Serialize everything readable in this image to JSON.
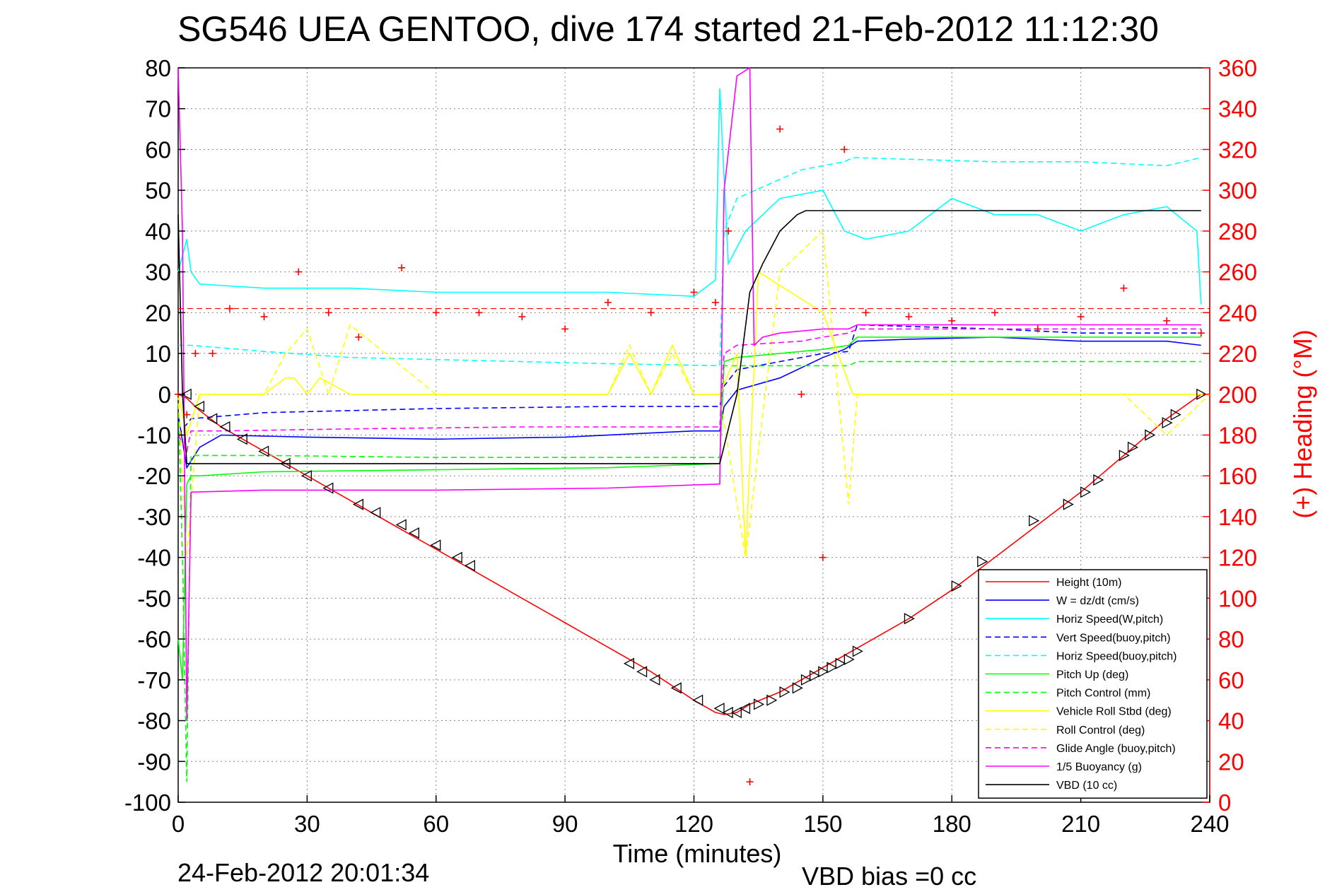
{
  "chart_data": {
    "type": "line",
    "title": "SG546 UEA GENTOO, dive 174 started 21-Feb-2012 11:12:30",
    "xlabel": "Time (minutes)",
    "ylabel": "",
    "y2label": "(+) Heading (°M)",
    "xlim": [
      0,
      240
    ],
    "ylim": [
      -100,
      80
    ],
    "y2lim": [
      0,
      360
    ],
    "xticks": [
      "0",
      "30",
      "60",
      "90",
      "120",
      "150",
      "180",
      "210",
      "240"
    ],
    "yticks": [
      "80",
      "70",
      "60",
      "50",
      "40",
      "30",
      "20",
      "10",
      "0",
      "-10",
      "-20",
      "-30",
      "-40",
      "-50",
      "-60",
      "-70",
      "-80",
      "-90",
      "-100"
    ],
    "y2ticks": [
      "360",
      "340",
      "320",
      "300",
      "280",
      "260",
      "240",
      "220",
      "200",
      "180",
      "160",
      "140",
      "120",
      "100",
      "80",
      "60",
      "40",
      "20",
      "0"
    ],
    "grid": true,
    "legend_position": "bottom-right",
    "footer_left": "24-Feb-2012 20:01:34",
    "footer_right": "VBD bias =0 cc",
    "colors": {
      "red": "#ff0000",
      "blue": "#0000ff",
      "cyan": "#00ffff",
      "green": "#00ff00",
      "yellow": "#ffff00",
      "magenta": "#ff00ff",
      "black": "#000000"
    },
    "series": [
      {
        "name": "Height (10m)",
        "color": "#ff0000",
        "style": "solid",
        "x": [
          0,
          2,
          5,
          10,
          20,
          30,
          40,
          50,
          60,
          70,
          80,
          90,
          100,
          110,
          120,
          125,
          127,
          130,
          133,
          140,
          150,
          160,
          170,
          180,
          190,
          200,
          210,
          220,
          230,
          238
        ],
        "y": [
          0,
          -1,
          -4,
          -8,
          -14,
          -20,
          -26,
          -32,
          -38,
          -44,
          -50,
          -56,
          -62,
          -68,
          -75,
          -78,
          -78.5,
          -78,
          -76,
          -73,
          -67,
          -61,
          -55,
          -48,
          -40,
          -32,
          -24,
          -15,
          -6,
          0
        ]
      },
      {
        "name": "W = dz/dt (cm/s)",
        "color": "#0000ff",
        "style": "solid",
        "x": [
          0,
          2,
          5,
          10,
          30,
          60,
          90,
          120,
          126,
          127,
          130,
          140,
          150,
          155,
          158,
          170,
          190,
          210,
          230,
          238
        ],
        "y": [
          -5,
          -18,
          -13,
          -10,
          -10.5,
          -11,
          -10.5,
          -9,
          -9,
          -3,
          1,
          4,
          9,
          11,
          13,
          13.5,
          14,
          13,
          13,
          12
        ]
      },
      {
        "name": "Horiz Speed(W,pitch)",
        "color": "#00ffff",
        "style": "solid",
        "x": [
          0,
          2,
          3,
          5,
          20,
          40,
          60,
          80,
          100,
          120,
          125,
          126,
          128,
          132,
          140,
          150,
          155,
          160,
          170,
          180,
          190,
          200,
          210,
          220,
          230,
          237,
          238
        ],
        "y": [
          30,
          38,
          30,
          27,
          26,
          26,
          25,
          25,
          25,
          24,
          28,
          75,
          32,
          40,
          48,
          50,
          40,
          38,
          40,
          48,
          44,
          44,
          40,
          44,
          46,
          40,
          22
        ]
      },
      {
        "name": "Vert Speed(buoy,pitch)",
        "color": "#0000ff",
        "style": "dashed",
        "x": [
          0,
          3,
          20,
          60,
          100,
          126,
          127,
          130,
          145,
          150,
          156,
          158,
          190,
          210,
          238
        ],
        "y": [
          -10,
          -6,
          -4.5,
          -3.5,
          -3,
          -3,
          2,
          6,
          9,
          10,
          10.5,
          17,
          16,
          15,
          15
        ]
      },
      {
        "name": "Horiz Speed(buoy,pitch)",
        "color": "#00ffff",
        "style": "dashed",
        "x": [
          0,
          3,
          20,
          40,
          60,
          100,
          126,
          127,
          130,
          145,
          155,
          157,
          190,
          210,
          230,
          238
        ],
        "y": [
          12,
          12,
          10.5,
          9,
          8.5,
          7.5,
          7,
          40,
          48,
          55,
          57,
          58,
          57,
          57,
          56,
          58
        ]
      },
      {
        "name": "Pitch Up (deg)",
        "color": "#00ff00",
        "style": "solid",
        "x": [
          0,
          1,
          2,
          3,
          5,
          20,
          60,
          100,
          126,
          127,
          130,
          140,
          150,
          156,
          158,
          180,
          210,
          238
        ],
        "y": [
          -60,
          -70,
          -22,
          -20,
          -20,
          -19,
          -18.5,
          -18,
          -17,
          8,
          9,
          10,
          11,
          12,
          14,
          14,
          14,
          14
        ]
      },
      {
        "name": "Pitch Control (mm)",
        "color": "#00ff00",
        "style": "dashed",
        "x": [
          0,
          1,
          2,
          3,
          20,
          60,
          126,
          127,
          150,
          156,
          158,
          238
        ],
        "y": [
          0,
          -40,
          -95,
          -15,
          -15,
          -15.5,
          -15.5,
          7,
          7,
          7,
          8,
          8
        ]
      },
      {
        "name": "Vehicle Roll Stbd (deg)",
        "color": "#ffff00",
        "style": "solid",
        "x": [
          0,
          2,
          5,
          20,
          25,
          27,
          30,
          33,
          40,
          60,
          80,
          100,
          105,
          110,
          115,
          120,
          126,
          130,
          132,
          135,
          150,
          157,
          160,
          180,
          200,
          220,
          240
        ],
        "y": [
          0,
          -10,
          0,
          0,
          4,
          4,
          0,
          4,
          0,
          0,
          0,
          0,
          10,
          0,
          12,
          0,
          0,
          10,
          -40,
          30,
          20,
          0,
          0,
          0,
          0,
          0,
          0
        ]
      },
      {
        "name": "Roll Control (deg)",
        "color": "#ffff00",
        "style": "dashed",
        "x": [
          0,
          2,
          5,
          20,
          25,
          30,
          35,
          40,
          60,
          80,
          100,
          105,
          110,
          115,
          120,
          126,
          132,
          140,
          150,
          156,
          158,
          180,
          200,
          220,
          230,
          240
        ],
        "y": [
          0,
          -40,
          0,
          0,
          10,
          16,
          0,
          17,
          0,
          0,
          0,
          12,
          0,
          10,
          0,
          0,
          -40,
          30,
          40,
          -27,
          0,
          0,
          0,
          0,
          -10,
          0
        ]
      },
      {
        "name": "Glide Angle (buoy,pitch)",
        "color": "#ff00ff",
        "style": "dashed",
        "x": [
          0,
          2,
          3,
          10,
          40,
          80,
          126,
          127,
          130,
          145,
          150,
          156,
          158,
          180,
          238
        ],
        "y": [
          -10,
          -14,
          -9,
          -9,
          -8.5,
          -8,
          -8,
          10,
          12,
          13,
          14,
          15,
          16,
          16,
          16
        ]
      },
      {
        "name": "1/5 Buoyancy (g)",
        "color": "#ff00ff",
        "style": "solid",
        "x": [
          0,
          1,
          2,
          3,
          20,
          60,
          100,
          126,
          127,
          130,
          133,
          134,
          136,
          140,
          150,
          156,
          158,
          200,
          238
        ],
        "y": [
          80,
          40,
          -80,
          -24,
          -23.5,
          -23.5,
          -23,
          -22,
          50,
          78,
          80,
          12,
          14,
          15,
          16,
          16,
          17,
          17,
          17
        ]
      },
      {
        "name": "VBD (10 cc)",
        "color": "#000000",
        "style": "solid",
        "x": [
          0,
          1,
          2,
          3,
          30,
          60,
          100,
          126,
          130,
          133,
          136,
          140,
          144,
          146,
          150,
          200,
          238
        ],
        "y": [
          44,
          0,
          -17,
          -17,
          -17,
          -17,
          -17,
          -17,
          0,
          25,
          32,
          40,
          44,
          45,
          45,
          45,
          45
        ]
      }
    ],
    "heading_series": {
      "name": "Heading",
      "color": "#ff0000",
      "style": "plus-markers",
      "axis": "right",
      "x": [
        0,
        2,
        4,
        8,
        12,
        20,
        28,
        35,
        42,
        52,
        60,
        70,
        80,
        90,
        100,
        110,
        120,
        125,
        128,
        133,
        140,
        145,
        150,
        155,
        160,
        170,
        180,
        190,
        200,
        210,
        220,
        230,
        238
      ],
      "y": [
        200,
        190,
        220,
        220,
        242,
        238,
        260,
        240,
        228,
        262,
        240,
        240,
        238,
        232,
        245,
        240,
        250,
        245,
        280,
        10,
        330,
        200,
        120,
        320,
        240,
        238,
        236,
        240,
        232,
        238,
        252,
        236,
        230
      ]
    },
    "heading_reference": {
      "color": "#ff0000",
      "style": "dashed",
      "axis": "right",
      "y": 242
    },
    "trajectory_markers": {
      "color": "#000000",
      "style": "triangles",
      "x": [
        2,
        5,
        8,
        11,
        15,
        20,
        25,
        30,
        35,
        42,
        46,
        52,
        55,
        60,
        65,
        68,
        105,
        108,
        111,
        116,
        121,
        126,
        128,
        130,
        132,
        135,
        138,
        141,
        144,
        146,
        148,
        150,
        152,
        154,
        156,
        158,
        170,
        181,
        187,
        199,
        207,
        211,
        214,
        220,
        222,
        226,
        230,
        232,
        238
      ],
      "y": [
        0,
        -3,
        -6,
        -8,
        -11,
        -14,
        -17,
        -20,
        -23,
        -27,
        -29,
        -32,
        -34,
        -37,
        -40,
        -42,
        -66,
        -68,
        -70,
        -72,
        -75,
        -77,
        -78,
        -78,
        -77,
        -76,
        -75,
        -73,
        -72,
        -70,
        -69,
        -68,
        -67,
        -66,
        -65,
        -63,
        -55,
        -47,
        -41,
        -31,
        -27,
        -24,
        -21,
        -15,
        -13,
        -10,
        -7,
        -5,
        0
      ]
    }
  }
}
